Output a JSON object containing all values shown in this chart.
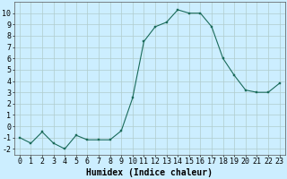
{
  "x": [
    0,
    1,
    2,
    3,
    4,
    5,
    6,
    7,
    8,
    9,
    10,
    11,
    12,
    13,
    14,
    15,
    16,
    17,
    18,
    19,
    20,
    21,
    22,
    23
  ],
  "y": [
    -1,
    -1.5,
    -0.5,
    -1.5,
    -2,
    -0.8,
    -1.2,
    -1.2,
    -1.2,
    -0.4,
    2.5,
    7.5,
    8.8,
    9.2,
    10.3,
    10.0,
    10.0,
    8.8,
    6.0,
    4.5,
    3.2,
    3.0,
    3.0,
    3.8
  ],
  "xlabel": "Humidex (Indice chaleur)",
  "ylim": [
    -2.5,
    11.0
  ],
  "xlim": [
    -0.5,
    23.5
  ],
  "line_color": "#1a6b5a",
  "marker_color": "#1a6b5a",
  "bg_color": "#cceeff",
  "grid_color": "#b0cccc",
  "yticks": [
    -2,
    -1,
    0,
    1,
    2,
    3,
    4,
    5,
    6,
    7,
    8,
    9,
    10
  ],
  "xticks": [
    0,
    1,
    2,
    3,
    4,
    5,
    6,
    7,
    8,
    9,
    10,
    11,
    12,
    13,
    14,
    15,
    16,
    17,
    18,
    19,
    20,
    21,
    22,
    23
  ],
  "xlabel_fontsize": 7,
  "tick_fontsize": 6
}
